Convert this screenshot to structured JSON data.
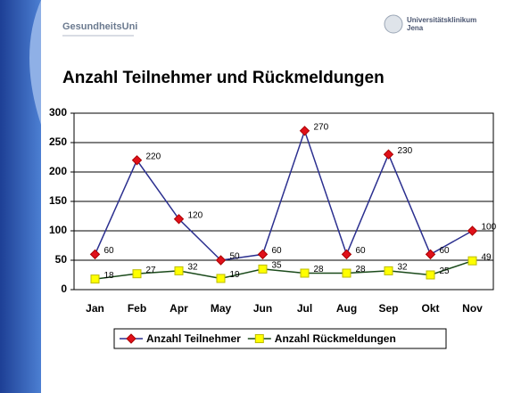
{
  "header": {
    "left_logo": "GesundheitsUni",
    "right_logo": [
      "Universitätsklinikum",
      "Jena"
    ]
  },
  "chart_data": {
    "type": "line",
    "title": "Anzahl Teilnehmer und Rückmeldungen",
    "categories": [
      "Jan",
      "Feb",
      "Apr",
      "May",
      "Jun",
      "Jul",
      "Aug",
      "Sep",
      "Okt",
      "Nov"
    ],
    "series": [
      {
        "name": "Anzahl Teilnehmer",
        "color": "#2b2f8f",
        "marker_color": "#e0101a",
        "marker": "diamond",
        "values": [
          60,
          220,
          120,
          50,
          60,
          270,
          60,
          230,
          60,
          100
        ]
      },
      {
        "name": "Anzahl Rückmeldungen",
        "color": "#1a4a1a",
        "marker_color": "#ffff00",
        "marker": "square",
        "values": [
          18,
          27,
          32,
          19,
          35,
          28,
          28,
          32,
          25,
          49
        ]
      }
    ],
    "ylim": [
      0,
      300
    ],
    "yticks": [
      0,
      50,
      100,
      150,
      200,
      250,
      300
    ],
    "grid": true,
    "legend": "bottom"
  }
}
